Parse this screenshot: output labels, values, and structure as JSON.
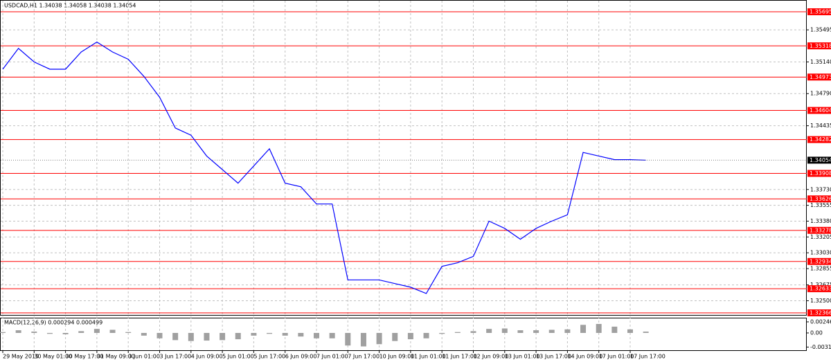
{
  "header": {
    "title": "USDCAD,H1  1.34038 1.34058 1.34038 1.34054"
  },
  "chart_data": [
    {
      "type": "line",
      "categories": [
        "29 May 2019",
        null,
        "30 May 01:00",
        null,
        "30 May 17:00",
        null,
        "31 May 09:00",
        null,
        "3 Jun 01:00",
        null,
        "3 Jun 17:00",
        null,
        "4 Jun 09:00",
        null,
        "5 Jun 01:00",
        null,
        "5 Jun 17:00",
        null,
        "6 Jun 09:00",
        null,
        "7 Jun 01:00",
        null,
        "7 Jun 17:00",
        null,
        "10 Jun 09:00",
        null,
        "11 Jun 01:00",
        null,
        "11 Jun 17:00",
        null,
        "12 Jun 09:00",
        null,
        "13 Jun 01:00",
        null,
        "13 Jun 17:00",
        null,
        "14 Jun 09:00",
        null,
        "17 Jun 01:00",
        null,
        "17 Jun 17:00",
        null
      ],
      "values": [
        1.3506,
        1.3529,
        1.3514,
        1.3506,
        1.3506,
        1.3525,
        1.3536,
        1.3525,
        1.3517,
        1.3498,
        1.3475,
        1.3441,
        1.3433,
        1.341,
        1.3395,
        1.338,
        1.3399,
        1.3418,
        1.338,
        1.3376,
        1.3357,
        1.3357,
        1.3273,
        1.3273,
        1.3273,
        1.3269,
        1.3265,
        1.3258,
        1.3288,
        1.3292,
        1.3299,
        1.3338,
        1.333,
        1.3318,
        1.333,
        1.3338,
        1.3345,
        1.3414,
        1.341,
        1.3406,
        1.3406,
        1.34054
      ],
      "color": "#0000ff",
      "ylim": [
        1.32343,
        1.35825
      ],
      "yticks": [
        1.35495,
        {
          "value": 1.3514,
          "label": "1.35140"
        },
        {
          "value": 1.3479,
          "label": "1.34790"
        },
        1.34435,
        {
          "value": 1.3373,
          "label": "1.33730"
        },
        1.33555,
        {
          "value": 1.3338,
          "label": "1.33380"
        },
        1.33205,
        {
          "value": 1.3303,
          "label": "1.33030"
        },
        1.32855,
        1.32675,
        {
          "value": 1.325,
          "label": "1.32500"
        }
      ],
      "levels": [
        1.35695,
        1.35318,
        1.34973,
        1.34604,
        1.34282,
        1.33908,
        1.33626,
        1.33278,
        1.32934,
        1.32633,
        1.32366
      ],
      "level_color": "#ff0000",
      "last": 1.34054,
      "grid": true
    },
    {
      "type": "bar",
      "title": "MACD(12,26,9) 0.000294 0.000499",
      "values": [
        0.0002,
        0.0006,
        0.0003,
        -0.0002,
        -0.0003,
        0.0004,
        0.0009,
        0.0007,
        0.0002,
        -0.0006,
        -0.0012,
        -0.0016,
        -0.0018,
        -0.0017,
        -0.0016,
        -0.0014,
        -0.0006,
        -0.0002,
        -0.0006,
        -0.0008,
        -0.0012,
        -0.0012,
        -0.0028,
        -0.003,
        -0.0025,
        -0.0018,
        -0.0014,
        -0.0012,
        -0.0002,
        0.0002,
        0.0004,
        0.0009,
        0.001,
        0.0006,
        0.0006,
        0.0007,
        0.0008,
        0.0018,
        0.002,
        0.0014,
        0.0008,
        0.000294
      ],
      "color": "#a0a0a0",
      "ylim": [
        -0.00385,
        0.00339
      ],
      "yticks": [
        0.002465,
        {
          "value": 0,
          "label": "0.00"
        },
        -0.003145
      ],
      "grid": false
    }
  ]
}
